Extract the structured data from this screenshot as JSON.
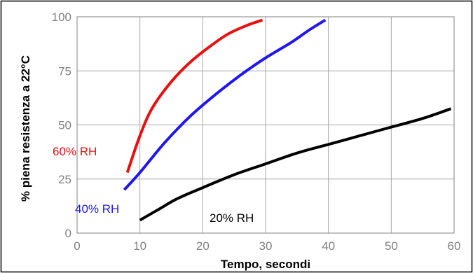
{
  "chart_data": {
    "type": "line",
    "title": "",
    "xlabel": "Tempo, secondi",
    "ylabel": "% piena resistenza a 22°C",
    "xlim": [
      0,
      60
    ],
    "ylim": [
      0,
      100
    ],
    "xticks": [
      "0",
      "10",
      "20",
      "30",
      "40",
      "50",
      "60"
    ],
    "yticks": [
      "0",
      "25",
      "50",
      "75",
      "100"
    ],
    "grid": true,
    "legend": "inline labels",
    "series": [
      {
        "name": "60% RH",
        "color": "#e8100f",
        "x": [
          8,
          10,
          12,
          15,
          18,
          21,
          24,
          27,
          29.5
        ],
        "y": [
          28,
          45,
          58,
          70,
          79,
          86,
          92,
          96,
          98.5
        ]
      },
      {
        "name": "40% RH",
        "color": "#1f16f0",
        "x": [
          7.5,
          10,
          14,
          18,
          22,
          26,
          30,
          34,
          37,
          39.5
        ],
        "y": [
          20,
          28,
          42,
          54,
          64,
          73,
          81,
          88,
          94,
          98.5
        ]
      },
      {
        "name": "20% RH",
        "color": "#000000",
        "x": [
          10,
          13,
          16,
          20,
          25,
          30,
          35,
          40,
          45,
          50,
          55,
          59.5
        ],
        "y": [
          6,
          11,
          16,
          21,
          27,
          32,
          37,
          41,
          45,
          49,
          53,
          57.5
        ]
      }
    ]
  }
}
